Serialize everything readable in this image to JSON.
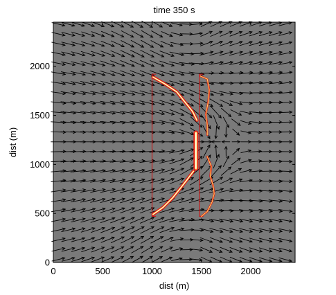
{
  "chart_data": {
    "type": "vector-field",
    "title": "time 350 s",
    "xlabel": "dist (m)",
    "ylabel": "dist (m)",
    "xlim": [
      0,
      2450
    ],
    "ylim": [
      0,
      2450
    ],
    "xticks": [
      0,
      500,
      1000,
      1500,
      2000
    ],
    "yticks": [
      0,
      500,
      1000,
      1500,
      2000
    ],
    "background_color": "#7a7a7a",
    "arrow_color": "#000000",
    "grid": false,
    "legend": "none",
    "frames": [
      {
        "name": "left-bracket",
        "color": "#d01010",
        "x_top": 1000,
        "x_bottom": 1000,
        "y_top": 1920,
        "y_bottom": 470,
        "hook": 40
      },
      {
        "name": "right-bracket",
        "color": "#d01010",
        "x_top": 1480,
        "x_bottom": 1480,
        "y_top": 1920,
        "y_bottom": 470,
        "hook": 40
      }
    ],
    "fronts": [
      {
        "name": "left-front-upper",
        "points": [
          [
            1010,
            1890
          ],
          [
            1130,
            1820
          ],
          [
            1250,
            1740
          ],
          [
            1330,
            1640
          ],
          [
            1410,
            1540
          ],
          [
            1455,
            1450
          ]
        ]
      },
      {
        "name": "left-front-lower",
        "points": [
          [
            1010,
            490
          ],
          [
            1110,
            560
          ],
          [
            1210,
            660
          ],
          [
            1290,
            760
          ],
          [
            1360,
            850
          ],
          [
            1420,
            930
          ]
        ]
      },
      {
        "name": "left-front-core",
        "points": [
          [
            1445,
            1320
          ],
          [
            1445,
            1200
          ],
          [
            1445,
            1080
          ],
          [
            1445,
            960
          ]
        ]
      },
      {
        "name": "right-front-upper",
        "points": [
          [
            1490,
            1900
          ],
          [
            1560,
            1870
          ],
          [
            1580,
            1760
          ],
          [
            1570,
            1640
          ],
          [
            1545,
            1510
          ],
          [
            1560,
            1400
          ],
          [
            1560,
            1300
          ]
        ]
      },
      {
        "name": "right-front-lower",
        "points": [
          [
            1560,
            1080
          ],
          [
            1600,
            980
          ],
          [
            1590,
            880
          ],
          [
            1620,
            780
          ],
          [
            1630,
            700
          ],
          [
            1610,
            620
          ],
          [
            1560,
            520
          ],
          [
            1500,
            470
          ]
        ]
      }
    ],
    "flow": {
      "source": [
        1500,
        1230
      ],
      "vortex_top": [
        1230,
        2150
      ],
      "vortex_bottom": [
        1230,
        300
      ],
      "grid_step": 100
    }
  }
}
